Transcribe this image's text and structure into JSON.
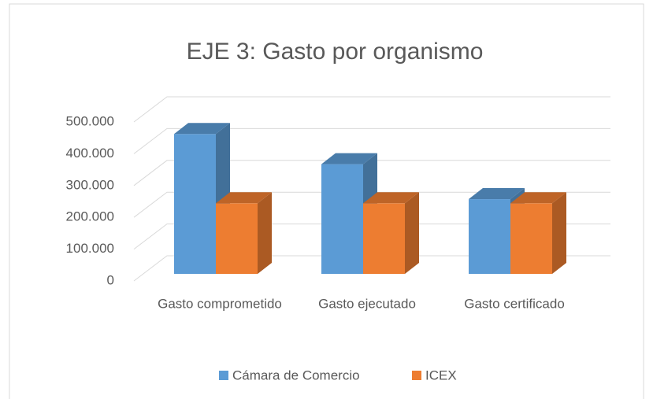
{
  "chart_data": {
    "type": "bar3d",
    "title": "EJE 3: Gasto por organismo",
    "categories": [
      "Gasto comprometido",
      "Gasto ejecutado",
      "Gasto certificado"
    ],
    "series": [
      {
        "name": "Cámara de Comercio",
        "color": "#5b9bd5",
        "values": [
          440000,
          345000,
          235000
        ]
      },
      {
        "name": "ICEX",
        "color": "#ed7d31",
        "values": [
          222000,
          222000,
          222000
        ]
      }
    ],
    "ylim": [
      0,
      500000
    ],
    "yticks": [
      0,
      {
        "value": 100000,
        "label": "100.000"
      },
      {
        "value": 200000,
        "label": "200.000"
      },
      {
        "value": 300000,
        "label": "300.000"
      },
      {
        "value": 400000,
        "label": "400.000"
      },
      {
        "value": 500000,
        "label": "500.000"
      }
    ],
    "grid": true,
    "legend": "bottom"
  }
}
